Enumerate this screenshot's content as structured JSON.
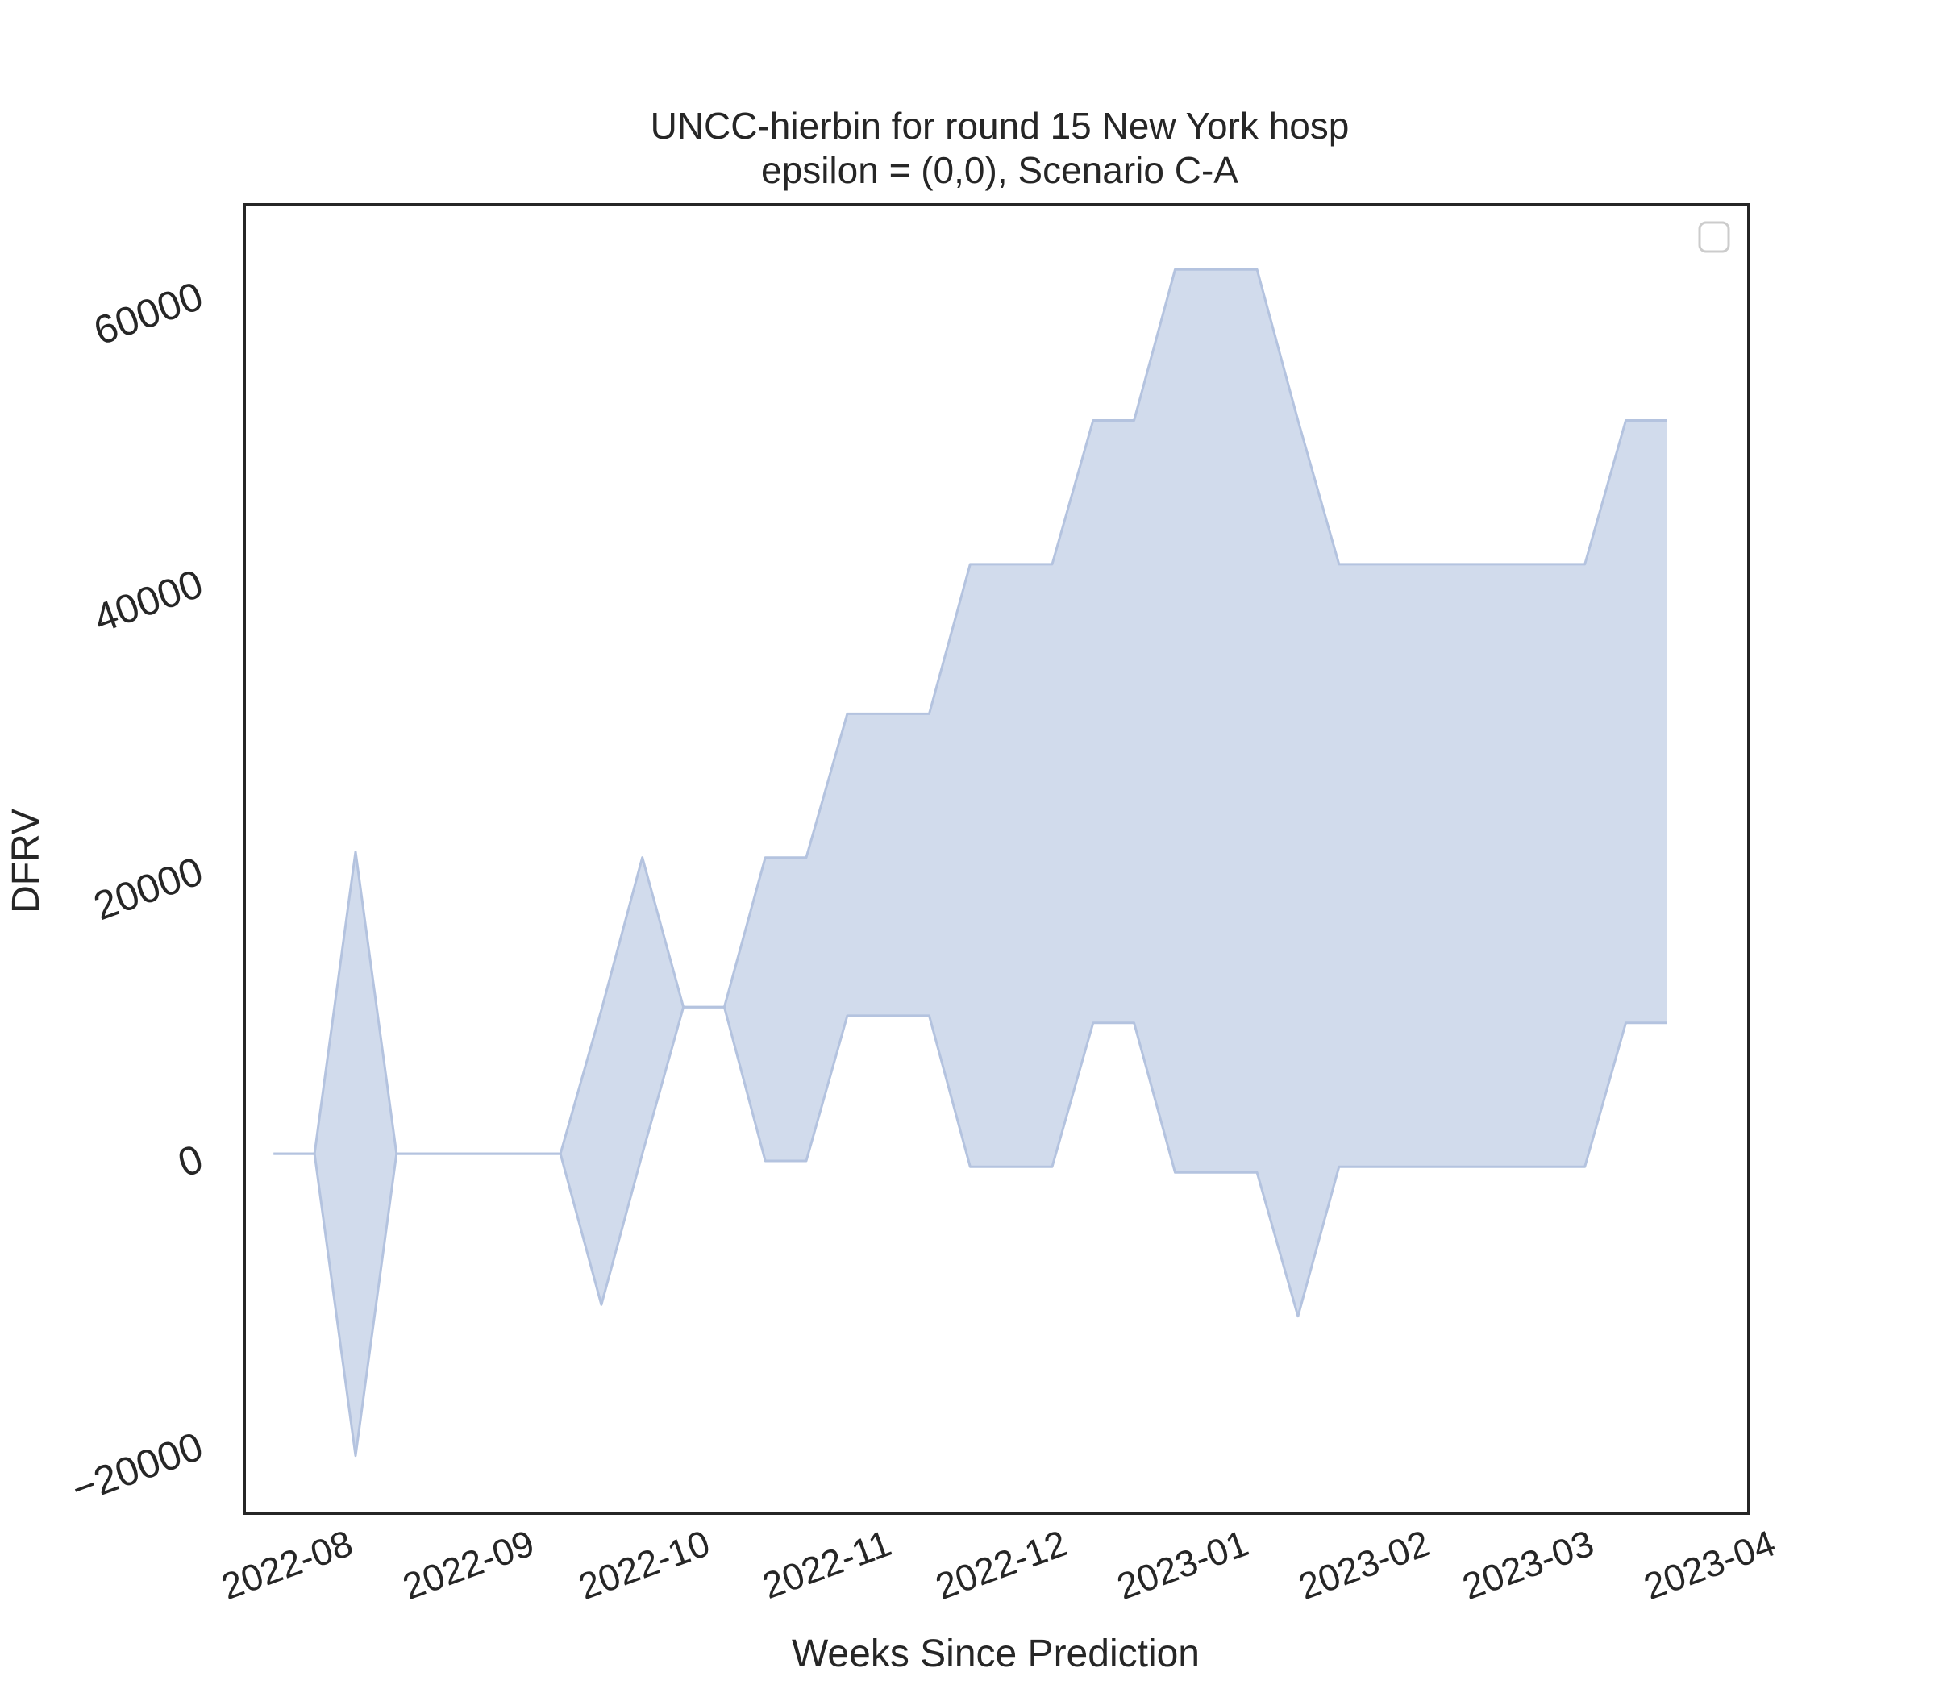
{
  "chart_data": {
    "type": "area",
    "title": "UNCC-hierbin for round 15 New York hosp\nepsilon = (0,0), Scenario C-A",
    "xlabel": "Weeks Since Prediction",
    "ylabel": "DFRV",
    "x_tick_labels": [
      "2022-08",
      "2022-09",
      "2022-10",
      "2022-11",
      "2022-12",
      "2023-01",
      "2023-02",
      "2023-03",
      "2023-04"
    ],
    "x_tick_dates": [
      "2022-08-01",
      "2022-09-01",
      "2022-10-01",
      "2022-11-01",
      "2022-12-01",
      "2023-01-01",
      "2023-02-01",
      "2023-03-01",
      "2023-04-01"
    ],
    "y_ticks": [
      -20000,
      0,
      20000,
      40000,
      60000
    ],
    "y_tick_labels": [
      "−20000",
      "0",
      "20000",
      "40000",
      "60000"
    ],
    "xlim": [
      "2022-07-18",
      "2023-04-01"
    ],
    "ylim": [
      -25000,
      66000
    ],
    "grid": false,
    "legend": {
      "placement": "top-right",
      "entries": []
    },
    "fill_color": "#d1dbec",
    "line_color": "#b4c3df",
    "band": {
      "x": [
        "2022-07-23",
        "2022-07-30",
        "2022-08-06",
        "2022-08-13",
        "2022-08-20",
        "2022-08-27",
        "2022-09-03",
        "2022-09-10",
        "2022-09-17",
        "2022-09-24",
        "2022-10-01",
        "2022-10-08",
        "2022-10-15",
        "2022-10-22",
        "2022-10-29",
        "2022-11-05",
        "2022-11-12",
        "2022-11-19",
        "2022-11-26",
        "2022-12-03",
        "2022-12-10",
        "2022-12-17",
        "2022-12-24",
        "2022-12-31",
        "2023-01-07",
        "2023-01-14",
        "2023-01-21",
        "2023-01-28",
        "2023-02-04",
        "2023-02-11",
        "2023-02-18",
        "2023-02-25",
        "2023-03-04",
        "2023-03-11",
        "2023-03-18"
      ],
      "lower": [
        0,
        0,
        -21000,
        0,
        0,
        0,
        0,
        0,
        -10500,
        0,
        10200,
        10200,
        -500,
        -500,
        9600,
        9600,
        9600,
        -900,
        -900,
        -900,
        9100,
        9100,
        -1300,
        -1300,
        -1300,
        -11300,
        -900,
        -900,
        -900,
        -900,
        -900,
        -900,
        -900,
        9100,
        9100
      ],
      "upper": [
        0,
        0,
        21000,
        0,
        0,
        0,
        0,
        0,
        10000,
        20600,
        10200,
        10200,
        20600,
        20600,
        30600,
        30600,
        30600,
        41000,
        41000,
        41000,
        51000,
        51000,
        61500,
        61500,
        61500,
        51000,
        41000,
        41000,
        41000,
        41000,
        41000,
        41000,
        41000,
        51000,
        51000
      ]
    }
  }
}
